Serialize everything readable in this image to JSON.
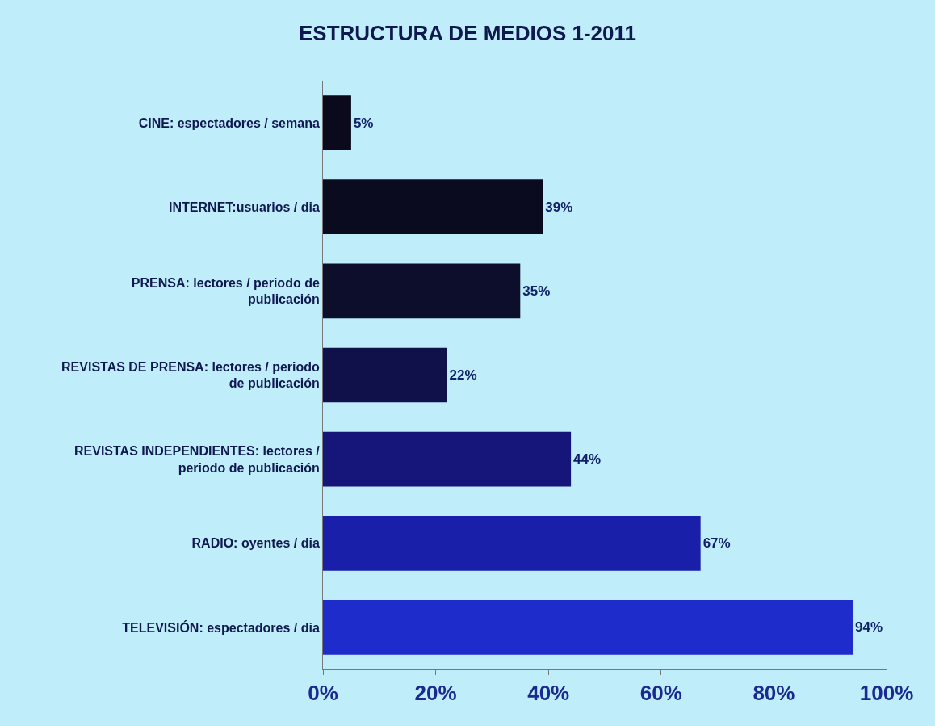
{
  "chart_data": {
    "type": "bar",
    "orientation": "horizontal",
    "title": "ESTRUCTURA DE MEDIOS 1-2011",
    "categories": [
      "CINE: espectadores / semana",
      "INTERNET:usuarios / dia",
      "PRENSA: lectores / periodo de publicación",
      "REVISTAS DE PRENSA: lectores / periodo de publicación",
      "REVISTAS INDEPENDIENTES: lectores / periodo de publicación",
      "RADIO: oyentes / dia",
      "TELEVISIÓN: espectadores / dia"
    ],
    "values": [
      5,
      39,
      35,
      22,
      44,
      67,
      94
    ],
    "colors": [
      "#0a0a1c",
      "#0b0b20",
      "#0d0d2c",
      "#10104a",
      "#15157a",
      "#1a1faa",
      "#1e2ccc"
    ],
    "value_labels": [
      "5%",
      "39%",
      "35%",
      "22%",
      "44%",
      "67%",
      "94%"
    ],
    "xlim": [
      0,
      100
    ],
    "xticks": [
      {
        "value": 0,
        "label": "0%"
      },
      {
        "value": 20,
        "label": "20%"
      },
      {
        "value": 40,
        "label": "40%"
      },
      {
        "value": 60,
        "label": "60%"
      },
      {
        "value": 80,
        "label": "80%"
      },
      {
        "value": 100,
        "label": "100%"
      }
    ],
    "grid": false
  }
}
